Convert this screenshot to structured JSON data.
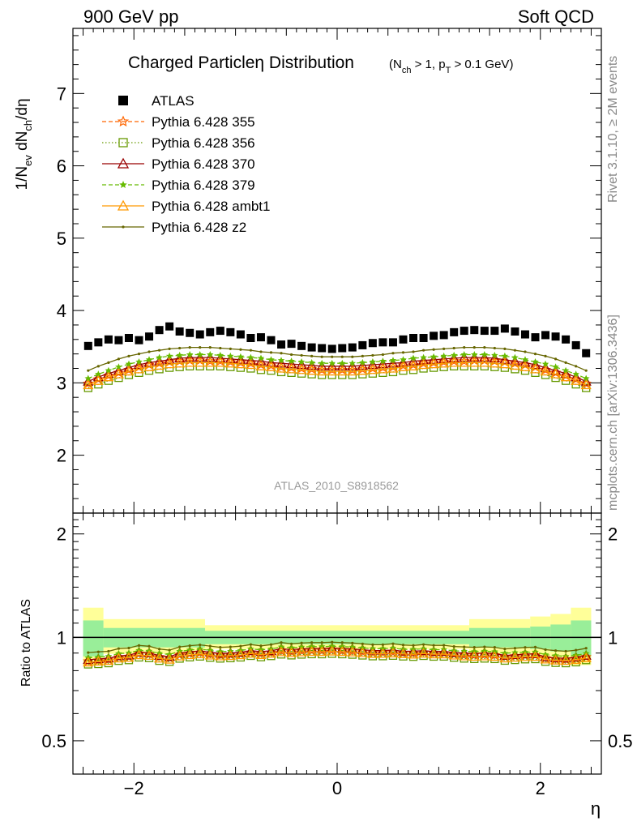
{
  "header": {
    "left": "900 GeV pp",
    "right": "Soft QCD"
  },
  "side_labels": {
    "rivet": "Rivet 3.1.10, ≥ 2M events",
    "mcplots": "mcplots.cern.ch [arXiv:1306.3436]"
  },
  "analysis_id": "ATLAS_2010_S8918562",
  "colors": {
    "data": "#000000",
    "p355": "#ff6600",
    "p356": "#669900",
    "p370": "#990000",
    "p379": "#66bb00",
    "ambt1": "#ff9900",
    "z2": "#666600",
    "band_inner": "#99ee99",
    "band_outer": "#ffff99"
  },
  "chart_data": [
    {
      "type": "scatter",
      "title": "Charged Particleη Distribution",
      "title_suffix": "(N_ch > 1, p_T > 0.1 GeV)",
      "xlabel": "η",
      "ylabel": "1/N_ev dN_ch/dη",
      "xlim": [
        -2.6,
        2.6
      ],
      "ylim": [
        1.2,
        7.9
      ],
      "x_ticks": [
        -2,
        0,
        2
      ],
      "x_tick_labels": [
        "−2",
        "0",
        "2"
      ],
      "y_ticks": [
        2,
        3,
        4,
        5,
        6,
        7
      ],
      "legend_position": "top-left",
      "x": [
        -2.45,
        -2.35,
        -2.25,
        -2.15,
        -2.05,
        -1.95,
        -1.85,
        -1.75,
        -1.65,
        -1.55,
        -1.45,
        -1.35,
        -1.25,
        -1.15,
        -1.05,
        -0.95,
        -0.85,
        -0.75,
        -0.65,
        -0.55,
        -0.45,
        -0.35,
        -0.25,
        -0.15,
        -0.05,
        0.05,
        0.15,
        0.25,
        0.35,
        0.45,
        0.55,
        0.65,
        0.75,
        0.85,
        0.95,
        1.05,
        1.15,
        1.25,
        1.35,
        1.45,
        1.55,
        1.65,
        1.75,
        1.85,
        1.95,
        2.05,
        2.15,
        2.25,
        2.35,
        2.45
      ],
      "series": [
        {
          "name": "ATLAS",
          "key": "data",
          "marker": "square",
          "values": [
            3.51,
            3.56,
            3.6,
            3.59,
            3.62,
            3.59,
            3.64,
            3.73,
            3.78,
            3.71,
            3.69,
            3.67,
            3.7,
            3.72,
            3.7,
            3.67,
            3.62,
            3.63,
            3.59,
            3.53,
            3.54,
            3.51,
            3.49,
            3.48,
            3.47,
            3.48,
            3.49,
            3.52,
            3.55,
            3.56,
            3.56,
            3.6,
            3.62,
            3.62,
            3.65,
            3.66,
            3.7,
            3.72,
            3.73,
            3.72,
            3.72,
            3.75,
            3.71,
            3.67,
            3.63,
            3.66,
            3.64,
            3.6,
            3.52,
            3.41
          ]
        },
        {
          "name": "Pythia 6.428 355",
          "key": "p355",
          "marker": "star-open",
          "dashed": true,
          "values": [
            2.99,
            3.05,
            3.1,
            3.14,
            3.18,
            3.22,
            3.25,
            3.27,
            3.29,
            3.3,
            3.31,
            3.31,
            3.3,
            3.3,
            3.29,
            3.28,
            3.27,
            3.25,
            3.24,
            3.22,
            3.21,
            3.2,
            3.19,
            3.18,
            3.18,
            3.18,
            3.18,
            3.19,
            3.2,
            3.21,
            3.22,
            3.24,
            3.25,
            3.27,
            3.28,
            3.29,
            3.3,
            3.3,
            3.31,
            3.31,
            3.3,
            3.29,
            3.27,
            3.25,
            3.22,
            3.18,
            3.14,
            3.1,
            3.05,
            2.99
          ]
        },
        {
          "name": "Pythia 6.428 356",
          "key": "p356",
          "marker": "square-open",
          "dotted": true,
          "values": [
            2.93,
            2.98,
            3.03,
            3.07,
            3.11,
            3.14,
            3.17,
            3.19,
            3.21,
            3.22,
            3.23,
            3.23,
            3.23,
            3.23,
            3.22,
            3.21,
            3.2,
            3.18,
            3.17,
            3.15,
            3.14,
            3.13,
            3.12,
            3.11,
            3.11,
            3.11,
            3.11,
            3.12,
            3.13,
            3.14,
            3.15,
            3.17,
            3.18,
            3.2,
            3.21,
            3.22,
            3.23,
            3.23,
            3.23,
            3.23,
            3.22,
            3.21,
            3.19,
            3.17,
            3.14,
            3.11,
            3.07,
            3.03,
            2.98,
            2.93
          ]
        },
        {
          "name": "Pythia 6.428 370",
          "key": "p370",
          "marker": "triangle-open",
          "values": [
            3.02,
            3.08,
            3.13,
            3.17,
            3.21,
            3.25,
            3.28,
            3.3,
            3.32,
            3.34,
            3.35,
            3.35,
            3.35,
            3.34,
            3.33,
            3.32,
            3.31,
            3.3,
            3.28,
            3.27,
            3.26,
            3.25,
            3.24,
            3.23,
            3.23,
            3.23,
            3.23,
            3.24,
            3.25,
            3.26,
            3.27,
            3.28,
            3.3,
            3.31,
            3.32,
            3.33,
            3.34,
            3.35,
            3.35,
            3.35,
            3.34,
            3.32,
            3.3,
            3.28,
            3.25,
            3.21,
            3.17,
            3.13,
            3.08,
            3.02
          ]
        },
        {
          "name": "Pythia 6.428 379",
          "key": "p379",
          "marker": "star",
          "dashed": true,
          "values": [
            3.06,
            3.12,
            3.17,
            3.22,
            3.26,
            3.29,
            3.32,
            3.35,
            3.37,
            3.38,
            3.39,
            3.39,
            3.39,
            3.38,
            3.37,
            3.36,
            3.35,
            3.34,
            3.32,
            3.31,
            3.3,
            3.29,
            3.28,
            3.27,
            3.27,
            3.27,
            3.27,
            3.28,
            3.29,
            3.3,
            3.31,
            3.32,
            3.34,
            3.35,
            3.36,
            3.37,
            3.38,
            3.39,
            3.39,
            3.39,
            3.38,
            3.37,
            3.35,
            3.32,
            3.29,
            3.26,
            3.22,
            3.17,
            3.12,
            3.06
          ]
        },
        {
          "name": "Pythia 6.428 ambt1",
          "key": "ambt1",
          "marker": "triangle-open",
          "values": [
            2.97,
            3.03,
            3.08,
            3.12,
            3.16,
            3.19,
            3.22,
            3.24,
            3.26,
            3.27,
            3.28,
            3.28,
            3.28,
            3.28,
            3.27,
            3.26,
            3.25,
            3.23,
            3.22,
            3.2,
            3.19,
            3.18,
            3.17,
            3.16,
            3.16,
            3.16,
            3.16,
            3.17,
            3.18,
            3.19,
            3.2,
            3.22,
            3.23,
            3.25,
            3.26,
            3.27,
            3.28,
            3.28,
            3.28,
            3.28,
            3.27,
            3.26,
            3.24,
            3.22,
            3.19,
            3.16,
            3.12,
            3.08,
            3.03,
            2.97
          ]
        },
        {
          "name": "Pythia 6.428 z2",
          "key": "z2",
          "marker": "dot",
          "values": [
            3.17,
            3.23,
            3.28,
            3.33,
            3.37,
            3.4,
            3.43,
            3.45,
            3.47,
            3.48,
            3.49,
            3.49,
            3.49,
            3.48,
            3.47,
            3.46,
            3.45,
            3.43,
            3.42,
            3.41,
            3.39,
            3.38,
            3.37,
            3.36,
            3.36,
            3.36,
            3.36,
            3.37,
            3.38,
            3.39,
            3.41,
            3.42,
            3.43,
            3.45,
            3.46,
            3.47,
            3.48,
            3.49,
            3.49,
            3.49,
            3.48,
            3.47,
            3.45,
            3.43,
            3.4,
            3.37,
            3.33,
            3.28,
            3.23,
            3.17
          ]
        }
      ]
    },
    {
      "type": "line",
      "ylabel": "Ratio to ATLAS",
      "xlabel": "η",
      "xlim": [
        -2.6,
        2.6
      ],
      "ylim": [
        0.4,
        2.3
      ],
      "y_log": true,
      "y_ticks": [
        0.5,
        1,
        2
      ],
      "y_tick_labels": [
        "0.5",
        "1",
        "2"
      ],
      "band_inner": [
        {
          "x0": -2.5,
          "x1": -2.3,
          "lo": 0.88,
          "hi": 1.12
        },
        {
          "x0": -2.3,
          "x1": -1.3,
          "lo": 0.935,
          "hi": 1.065
        },
        {
          "x0": -1.3,
          "x1": 1.3,
          "lo": 0.955,
          "hi": 1.045
        },
        {
          "x0": 1.3,
          "x1": 1.9,
          "lo": 0.935,
          "hi": 1.065
        },
        {
          "x0": 1.9,
          "x1": 2.1,
          "lo": 0.925,
          "hi": 1.075
        },
        {
          "x0": 2.1,
          "x1": 2.3,
          "lo": 0.91,
          "hi": 1.09
        },
        {
          "x0": 2.3,
          "x1": 2.5,
          "lo": 0.88,
          "hi": 1.12
        }
      ],
      "band_outer": [
        {
          "x0": -2.5,
          "x1": -2.3,
          "lo": 0.83,
          "hi": 1.22
        },
        {
          "x0": -2.3,
          "x1": -1.3,
          "lo": 0.895,
          "hi": 1.13
        },
        {
          "x0": -1.3,
          "x1": 1.3,
          "lo": 0.925,
          "hi": 1.085
        },
        {
          "x0": 1.3,
          "x1": 1.9,
          "lo": 0.895,
          "hi": 1.13
        },
        {
          "x0": 1.9,
          "x1": 2.1,
          "lo": 0.88,
          "hi": 1.15
        },
        {
          "x0": 2.1,
          "x1": 2.3,
          "lo": 0.865,
          "hi": 1.17
        },
        {
          "x0": 2.3,
          "x1": 2.5,
          "lo": 0.83,
          "hi": 1.22
        }
      ]
    }
  ]
}
